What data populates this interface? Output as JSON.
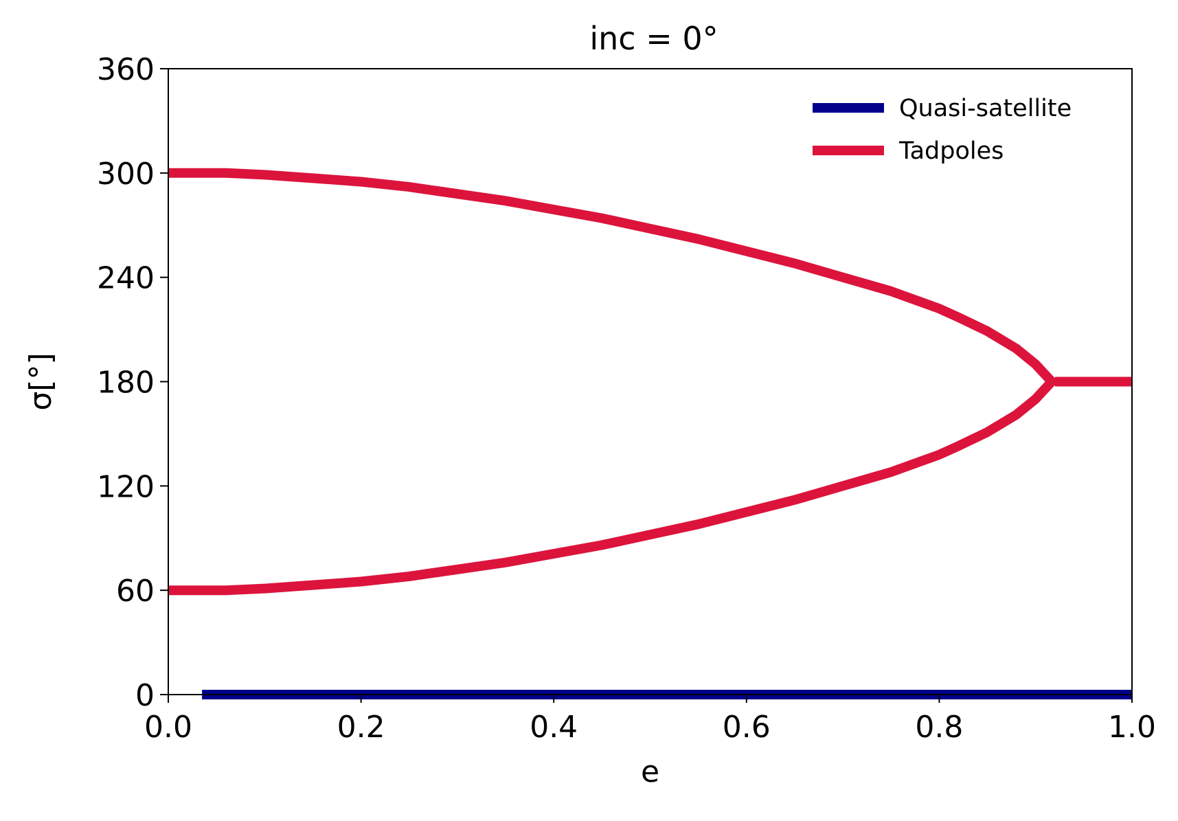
{
  "chart_data": {
    "type": "line",
    "title": "inc = 0°",
    "xlabel": "e",
    "ylabel": "σ[°]",
    "xlim": [
      0.0,
      1.0
    ],
    "ylim": [
      0,
      360
    ],
    "xticks": [
      "0.0",
      "0.2",
      "0.4",
      "0.6",
      "0.8",
      "1.0"
    ],
    "yticks": [
      "0",
      "60",
      "120",
      "180",
      "240",
      "300",
      "360"
    ],
    "grid": false,
    "legend_position": "top-right",
    "series": [
      {
        "name": "Quasi-satellite",
        "color": "#00008b",
        "segments": [
          {
            "x": [
              0.035,
              1.0
            ],
            "y": [
              0,
              0
            ]
          }
        ]
      },
      {
        "name": "Tadpoles",
        "color": "#dc143c",
        "segments": [
          {
            "x": [
              0.0,
              0.06,
              0.1,
              0.15,
              0.2,
              0.25,
              0.3,
              0.35,
              0.4,
              0.45,
              0.5,
              0.55,
              0.6,
              0.65,
              0.7,
              0.75,
              0.8,
              0.82,
              0.85,
              0.88,
              0.9,
              0.91,
              0.92
            ],
            "y": [
              300,
              300,
              299,
              297,
              295,
              292,
              288,
              284,
              279,
              274,
              268,
              262,
              255,
              248,
              240,
              232,
              222,
              217,
              209,
              199,
              190,
              184,
              178
            ]
          },
          {
            "x": [
              0.0,
              0.06,
              0.1,
              0.15,
              0.2,
              0.25,
              0.3,
              0.35,
              0.4,
              0.45,
              0.5,
              0.55,
              0.6,
              0.65,
              0.7,
              0.75,
              0.8,
              0.82,
              0.85,
              0.88,
              0.9,
              0.91,
              0.92
            ],
            "y": [
              60,
              60,
              61,
              63,
              65,
              68,
              72,
              76,
              81,
              86,
              92,
              98,
              105,
              112,
              120,
              128,
              138,
              143,
              151,
              161,
              170,
              176,
              182
            ]
          },
          {
            "x": [
              0.92,
              1.0
            ],
            "y": [
              180,
              180
            ]
          }
        ]
      }
    ]
  }
}
